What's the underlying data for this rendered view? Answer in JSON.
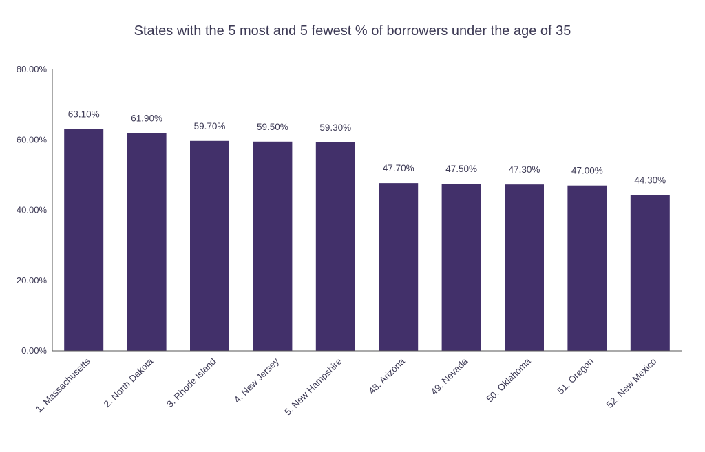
{
  "chart_data": {
    "type": "bar",
    "title": "States with the 5 most and 5 fewest % of borrowers under the age of 35",
    "xlabel": "",
    "ylabel": "",
    "categories": [
      "1. Massachusetts",
      "2. North Dakota",
      "3. Rhode Island",
      "4. New Jersey",
      "5. New Hampshire",
      "48. Arizona",
      "49. Nevada",
      "50. Oklahoma",
      "51. Oregon",
      "52. New Mexico"
    ],
    "values": [
      63.1,
      61.9,
      59.7,
      59.5,
      59.3,
      47.7,
      47.5,
      47.3,
      47.0,
      44.3
    ],
    "data_labels": [
      "63.10%",
      "61.90%",
      "59.70%",
      "59.50%",
      "59.30%",
      "47.70%",
      "47.50%",
      "47.30%",
      "47.00%",
      "44.30%"
    ],
    "ylim": [
      0,
      80
    ],
    "yticks": [
      0,
      20,
      40,
      60,
      80
    ],
    "ytick_labels": [
      "0.00%",
      "20.00%",
      "40.00%",
      "60.00%",
      "80.00%"
    ],
    "bar_color": "#42306a",
    "grid": false,
    "legend": "none"
  }
}
